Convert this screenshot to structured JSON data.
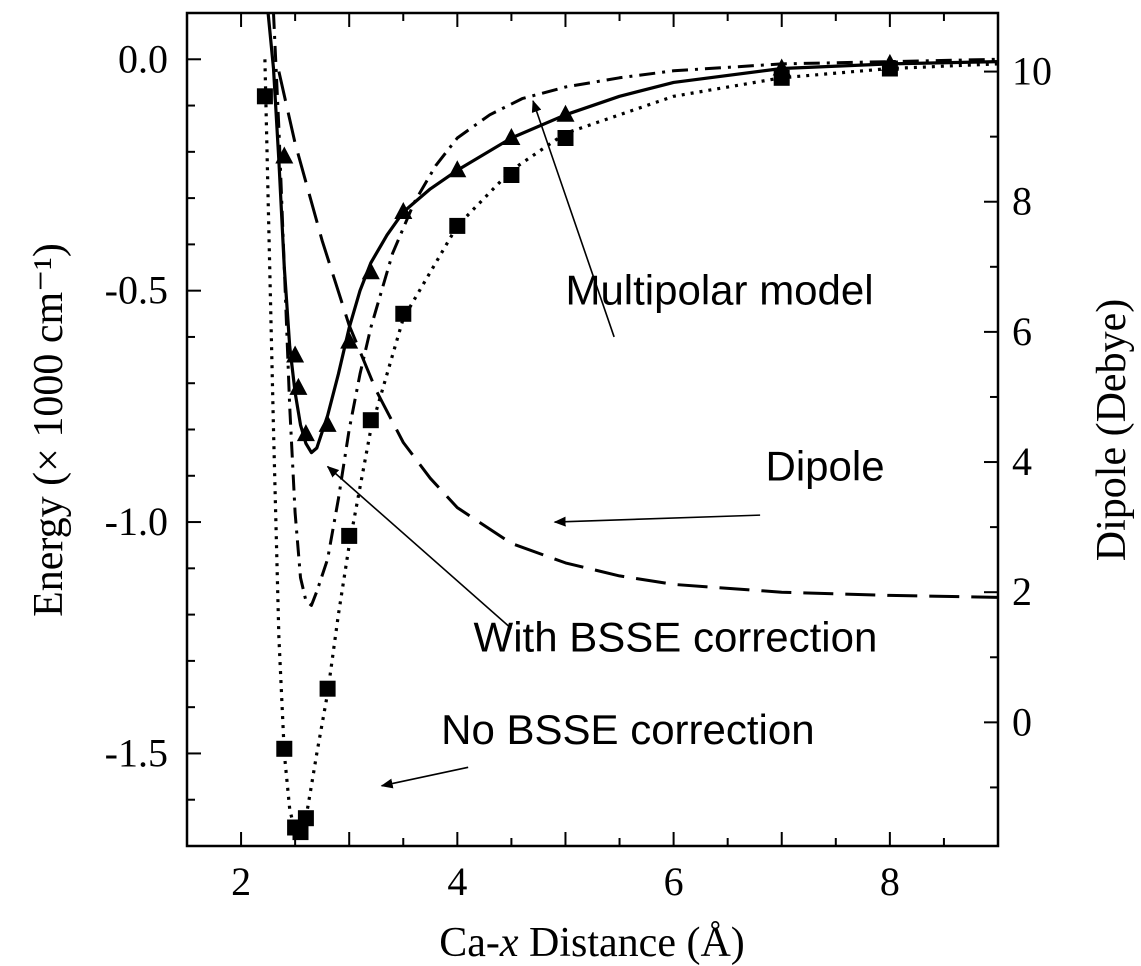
{
  "chart_data": {
    "type": "line",
    "xlabel": "Ca-x Distance (Å)",
    "ylabel": "Energy (× 1000 cm⁻¹)",
    "y2label": "Dipole (Debye)",
    "xlim": [
      1.5,
      9.0
    ],
    "ylim": [
      -1.7,
      0.1
    ],
    "y2lim": [
      -1.9,
      10.9
    ],
    "x_ticks": [
      2,
      4,
      6,
      8
    ],
    "y_ticks": [
      0.0,
      -0.5,
      -1.0,
      -1.5
    ],
    "y_tick_labels": [
      "0.0",
      "-0.5",
      "-1.0",
      "-1.5"
    ],
    "y2_ticks": [
      0,
      2,
      4,
      6,
      8,
      10
    ],
    "grid": false,
    "legend": "none",
    "series": [
      {
        "style": "solid",
        "axis": "left",
        "x": [
          2.25,
          2.3,
          2.35,
          2.4,
          2.45,
          2.5,
          2.55,
          2.6,
          2.65,
          2.7,
          2.8,
          2.9,
          3.0,
          3.1,
          3.2,
          3.35,
          3.5,
          3.75,
          4.0,
          4.5,
          5.0,
          5.5,
          6.0,
          7.0,
          8.0,
          9.0
        ],
        "y": [
          0.1,
          -0.02,
          -0.22,
          -0.45,
          -0.62,
          -0.72,
          -0.79,
          -0.83,
          -0.85,
          -0.84,
          -0.77,
          -0.68,
          -0.58,
          -0.5,
          -0.44,
          -0.38,
          -0.33,
          -0.28,
          -0.24,
          -0.17,
          -0.12,
          -0.08,
          -0.05,
          -0.02,
          -0.01,
          -0.005
        ]
      },
      {
        "style": "dashdot",
        "axis": "left",
        "x": [
          2.3,
          2.35,
          2.4,
          2.45,
          2.5,
          2.55,
          2.6,
          2.65,
          2.7,
          2.8,
          2.9,
          3.0,
          3.1,
          3.2,
          3.4,
          3.6,
          3.8,
          4.0,
          4.3,
          4.6,
          5.0,
          5.5,
          6.0,
          7.0,
          8.0,
          9.0
        ],
        "y": [
          0.1,
          -0.15,
          -0.45,
          -0.75,
          -0.98,
          -1.12,
          -1.17,
          -1.18,
          -1.15,
          -1.08,
          -0.95,
          -0.8,
          -0.68,
          -0.58,
          -0.42,
          -0.31,
          -0.23,
          -0.17,
          -0.12,
          -0.085,
          -0.06,
          -0.04,
          -0.025,
          -0.01,
          -0.005,
          0.0
        ]
      },
      {
        "style": "dotted",
        "axis": "left",
        "x": [
          2.22,
          2.25,
          2.3,
          2.35,
          2.4,
          2.45,
          2.5,
          2.55,
          2.6,
          2.65,
          2.7,
          2.8,
          2.9,
          3.0,
          3.2,
          3.5,
          4.0,
          4.5,
          5.0,
          6.0,
          7.0,
          8.0,
          9.0
        ],
        "y": [
          0.0,
          -0.3,
          -0.8,
          -1.25,
          -1.5,
          -1.62,
          -1.67,
          -1.68,
          -1.64,
          -1.57,
          -1.5,
          -1.37,
          -1.2,
          -1.05,
          -0.8,
          -0.56,
          -0.36,
          -0.24,
          -0.16,
          -0.08,
          -0.04,
          -0.02,
          -0.01
        ]
      },
      {
        "style": "dashed",
        "axis": "right",
        "x": [
          2.35,
          2.5,
          2.75,
          3.0,
          3.25,
          3.5,
          3.75,
          4.0,
          4.5,
          5.0,
          5.5,
          6.0,
          7.0,
          8.0,
          9.0
        ],
        "y": [
          10.0,
          8.9,
          7.4,
          6.1,
          5.1,
          4.3,
          3.75,
          3.3,
          2.75,
          2.45,
          2.25,
          2.12,
          2.0,
          1.95,
          1.92
        ]
      }
    ],
    "markers": [
      {
        "shape": "triangle",
        "x": [
          2.4,
          2.5,
          2.53,
          2.6,
          2.8,
          3.0,
          3.2,
          3.5,
          4.0,
          4.5,
          5.0,
          7.0,
          8.0
        ],
        "y": [
          -0.21,
          -0.64,
          -0.71,
          -0.81,
          -0.79,
          -0.61,
          -0.46,
          -0.33,
          -0.24,
          -0.17,
          -0.12,
          -0.02,
          -0.01
        ]
      },
      {
        "shape": "square",
        "x": [
          2.22,
          2.4,
          2.5,
          2.55,
          2.6,
          2.8,
          3.0,
          3.2,
          3.5,
          4.0,
          4.5,
          5.0,
          7.0,
          8.0
        ],
        "y": [
          -0.08,
          -1.49,
          -1.66,
          -1.67,
          -1.64,
          -1.36,
          -1.03,
          -0.78,
          -0.55,
          -0.36,
          -0.25,
          -0.17,
          -0.04,
          -0.02
        ]
      }
    ],
    "annotations": [
      {
        "text": "Multipolar model",
        "x": 5.0,
        "y": -0.53,
        "arrow_to": [
          4.7,
          -0.09
        ]
      },
      {
        "text": "Dipole",
        "x": 6.85,
        "y": -0.91,
        "arrow_to": [
          4.9,
          -1.0
        ]
      },
      {
        "text": "With BSSE correction",
        "x": 4.15,
        "y": -1.28,
        "arrow_to": [
          2.8,
          -0.88
        ]
      },
      {
        "text": "No BSSE correction",
        "x": 3.85,
        "y": -1.48,
        "arrow_to": [
          3.3,
          -1.57
        ]
      }
    ]
  }
}
